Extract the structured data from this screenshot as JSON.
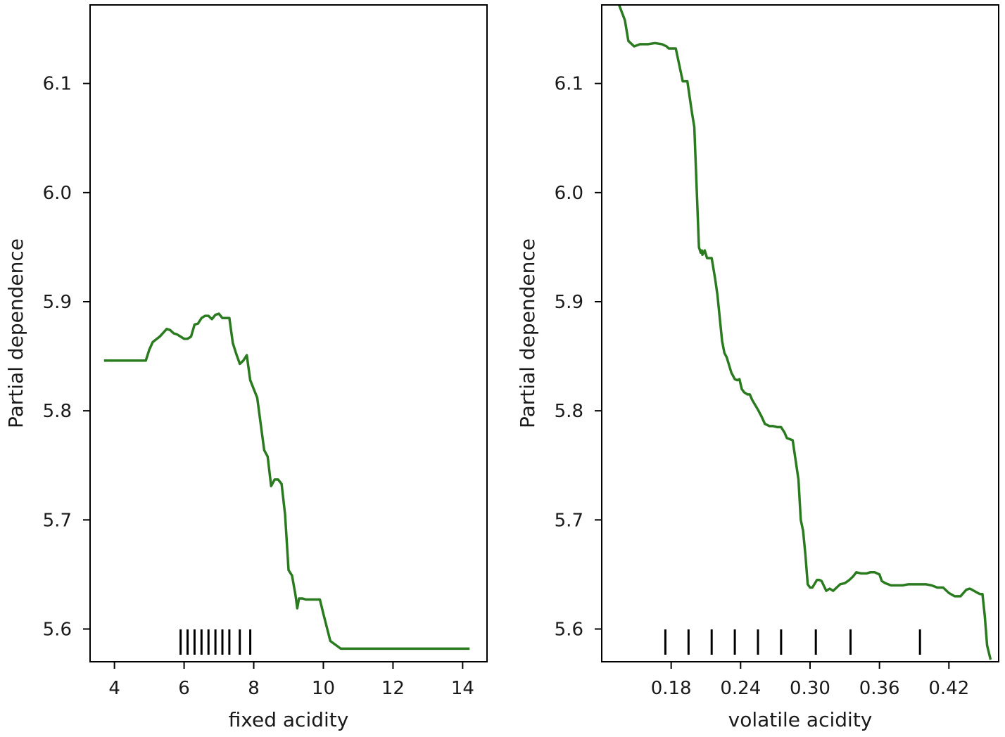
{
  "chart_data": [
    {
      "type": "line",
      "xlabel": "fixed acidity",
      "ylabel": "Partial dependence",
      "xlim": [
        3.3,
        14.7
      ],
      "ylim": [
        5.57,
        6.172
      ],
      "x_ticks": [
        4,
        6,
        8,
        10,
        12,
        14
      ],
      "x_tick_labels": [
        "4",
        "6",
        "8",
        "10",
        "12",
        "14"
      ],
      "y_ticks": [
        5.6,
        5.7,
        5.8,
        5.9,
        6.0,
        6.1
      ],
      "y_tick_labels": [
        "5.6",
        "5.7",
        "5.8",
        "5.9",
        "6.0",
        "6.1"
      ],
      "grid": false,
      "line_color": "#2a7a1f",
      "rug_x": [
        5.9,
        6.1,
        6.3,
        6.5,
        6.7,
        6.9,
        7.1,
        7.3,
        7.6,
        7.9
      ],
      "series": [
        {
          "x": [
            3.7,
            4.9,
            5.0,
            5.1,
            5.3,
            5.5,
            5.6,
            5.7,
            5.8,
            5.9,
            6.0,
            6.1,
            6.2,
            6.3,
            6.4,
            6.5,
            6.6,
            6.7,
            6.8,
            6.9,
            7.0,
            7.1,
            7.2,
            7.3,
            7.4,
            7.5,
            7.6,
            7.7,
            7.8,
            7.9,
            8.1,
            8.2,
            8.3,
            8.4,
            8.5,
            8.6,
            8.7,
            8.8,
            8.9,
            9.0,
            9.1,
            9.2,
            9.25,
            9.3,
            9.4,
            9.5,
            9.9,
            10.0,
            10.2,
            10.5,
            14.2
          ],
          "y": [
            5.846,
            5.846,
            5.856,
            5.863,
            5.868,
            5.875,
            5.874,
            5.871,
            5.87,
            5.868,
            5.866,
            5.866,
            5.868,
            5.879,
            5.88,
            5.885,
            5.887,
            5.887,
            5.884,
            5.888,
            5.889,
            5.885,
            5.885,
            5.885,
            5.862,
            5.852,
            5.843,
            5.846,
            5.851,
            5.828,
            5.812,
            5.788,
            5.764,
            5.758,
            5.731,
            5.737,
            5.737,
            5.733,
            5.705,
            5.654,
            5.649,
            5.631,
            5.619,
            5.628,
            5.628,
            5.627,
            5.627,
            5.614,
            5.589,
            5.582,
            5.582
          ]
        }
      ]
    },
    {
      "type": "line",
      "xlabel": "volatile acidity",
      "ylabel": "Partial dependence",
      "xlim": [
        0.12,
        0.463
      ],
      "ylim": [
        5.57,
        6.172
      ],
      "x_ticks": [
        0.18,
        0.24,
        0.3,
        0.36,
        0.42
      ],
      "x_tick_labels": [
        "0.18",
        "0.24",
        "0.30",
        "0.36",
        "0.42"
      ],
      "y_ticks": [
        5.6,
        5.7,
        5.8,
        5.9,
        6.0,
        6.1
      ],
      "y_tick_labels": [
        "5.6",
        "5.7",
        "5.8",
        "5.9",
        "6.0",
        "6.1"
      ],
      "grid": false,
      "line_color": "#2a7a1f",
      "rug_x": [
        0.175,
        0.195,
        0.215,
        0.235,
        0.255,
        0.275,
        0.305,
        0.335,
        0.395
      ],
      "series": [
        {
          "x": [
            0.135,
            0.14,
            0.143,
            0.148,
            0.153,
            0.16,
            0.166,
            0.172,
            0.176,
            0.178,
            0.184,
            0.19,
            0.193,
            0.194,
            0.198,
            0.2,
            0.204,
            0.2055,
            0.2065,
            0.207,
            0.209,
            0.211,
            0.213,
            0.215,
            0.218,
            0.22,
            0.222,
            0.224,
            0.226,
            0.228,
            0.232,
            0.235,
            0.237,
            0.239,
            0.241,
            0.243,
            0.246,
            0.248,
            0.25,
            0.255,
            0.258,
            0.261,
            0.265,
            0.268,
            0.272,
            0.275,
            0.278,
            0.28,
            0.285,
            0.29,
            0.292,
            0.294,
            0.296,
            0.298,
            0.3,
            0.302,
            0.306,
            0.308,
            0.31,
            0.314,
            0.317,
            0.32,
            0.323,
            0.326,
            0.33,
            0.334,
            0.337,
            0.34,
            0.344,
            0.349,
            0.352,
            0.356,
            0.36,
            0.362,
            0.365,
            0.37,
            0.375,
            0.38,
            0.385,
            0.39,
            0.395,
            0.4,
            0.405,
            0.41,
            0.415,
            0.418,
            0.42,
            0.425,
            0.43,
            0.435,
            0.438,
            0.44,
            0.445,
            0.447,
            0.449,
            0.451,
            0.453,
            0.456
          ],
          "y": [
            6.172,
            6.158,
            6.139,
            6.134,
            6.136,
            6.136,
            6.137,
            6.136,
            6.134,
            6.132,
            6.132,
            6.102,
            6.102,
            6.102,
            6.073,
            6.06,
            5.95,
            5.945,
            5.947,
            5.943,
            5.947,
            5.94,
            5.94,
            5.94,
            5.921,
            5.906,
            5.885,
            5.864,
            5.853,
            5.849,
            5.835,
            5.829,
            5.828,
            5.829,
            5.82,
            5.817,
            5.815,
            5.815,
            5.81,
            5.801,
            5.795,
            5.788,
            5.786,
            5.786,
            5.785,
            5.785,
            5.78,
            5.775,
            5.773,
            5.737,
            5.7,
            5.69,
            5.668,
            5.641,
            5.638,
            5.638,
            5.645,
            5.645,
            5.644,
            5.635,
            5.637,
            5.635,
            5.638,
            5.641,
            5.642,
            5.645,
            5.648,
            5.652,
            5.651,
            5.651,
            5.652,
            5.652,
            5.65,
            5.644,
            5.642,
            5.64,
            5.64,
            5.64,
            5.641,
            5.641,
            5.641,
            5.641,
            5.64,
            5.638,
            5.638,
            5.635,
            5.633,
            5.63,
            5.63,
            5.636,
            5.637,
            5.636,
            5.633,
            5.632,
            5.632,
            5.612,
            5.585,
            5.572
          ]
        }
      ]
    }
  ]
}
